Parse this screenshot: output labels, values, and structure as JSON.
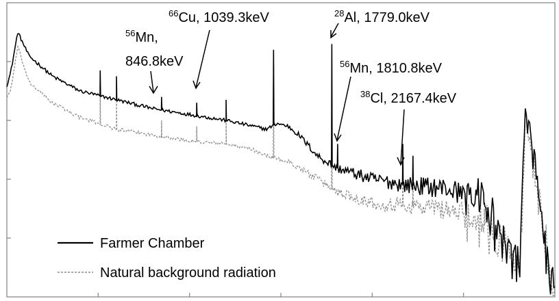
{
  "chart_data": {
    "type": "line",
    "title": "",
    "xlabel": "",
    "ylabel": "",
    "xlim": [
      0,
      3000
    ],
    "x_unit": "keV",
    "ylim": [
      0,
      1
    ],
    "grid": false,
    "legend_position": "bottom-left",
    "series": [
      {
        "name": "Farmer Chamber",
        "color": "#000000",
        "style": "solid",
        "continuum": [
          [
            0,
            0.72
          ],
          [
            20,
            0.76
          ],
          [
            60,
            0.9
          ],
          [
            120,
            0.82
          ],
          [
            250,
            0.75
          ],
          [
            400,
            0.7
          ],
          [
            600,
            0.67
          ],
          [
            800,
            0.64
          ],
          [
            1000,
            0.62
          ],
          [
            1200,
            0.6
          ],
          [
            1350,
            0.58
          ],
          [
            1420,
            0.57
          ],
          [
            1480,
            0.59
          ],
          [
            1540,
            0.58
          ],
          [
            1600,
            0.55
          ],
          [
            1700,
            0.48
          ],
          [
            1800,
            0.44
          ],
          [
            2000,
            0.4
          ],
          [
            2200,
            0.38
          ],
          [
            2400,
            0.37
          ],
          [
            2600,
            0.33
          ],
          [
            2700,
            0.2
          ],
          [
            2810,
            0.12
          ],
          [
            2840,
            0.65
          ],
          [
            2980,
            0.02
          ],
          [
            3000,
            0.02
          ]
        ],
        "peaks": [
          {
            "x": 511,
            "y": 0.77
          },
          {
            "x": 600,
            "y": 0.75
          },
          {
            "x": 846.8,
            "y": 0.68
          },
          {
            "x": 1039.3,
            "y": 0.66
          },
          {
            "x": 1200,
            "y": 0.67
          },
          {
            "x": 1460,
            "y": 0.84
          },
          {
            "x": 1779.0,
            "y": 0.86
          },
          {
            "x": 1810.8,
            "y": 0.52
          },
          {
            "x": 2167.4,
            "y": 0.52
          },
          {
            "x": 2223,
            "y": 0.48
          },
          {
            "x": 2614,
            "y": 0.32
          }
        ]
      },
      {
        "name": "Natural background radiation",
        "color": "#8c8c8c",
        "style": "dashed",
        "continuum": [
          [
            0,
            0.68
          ],
          [
            20,
            0.7
          ],
          [
            60,
            0.85
          ],
          [
            120,
            0.73
          ],
          [
            250,
            0.66
          ],
          [
            400,
            0.61
          ],
          [
            600,
            0.57
          ],
          [
            800,
            0.55
          ],
          [
            1000,
            0.53
          ],
          [
            1200,
            0.52
          ],
          [
            1350,
            0.5
          ],
          [
            1420,
            0.48
          ],
          [
            1480,
            0.47
          ],
          [
            1540,
            0.46
          ],
          [
            1600,
            0.44
          ],
          [
            1700,
            0.4
          ],
          [
            1800,
            0.36
          ],
          [
            2000,
            0.32
          ],
          [
            2200,
            0.31
          ],
          [
            2400,
            0.3
          ],
          [
            2600,
            0.26
          ],
          [
            2700,
            0.18
          ],
          [
            2810,
            0.1
          ],
          [
            2840,
            0.64
          ],
          [
            2980,
            0.05
          ],
          [
            3000,
            0.05
          ]
        ],
        "peaks": [
          {
            "x": 511,
            "y": 0.7
          },
          {
            "x": 600,
            "y": 0.67
          },
          {
            "x": 846.8,
            "y": 0.6
          },
          {
            "x": 1039.3,
            "y": 0.58
          },
          {
            "x": 1200,
            "y": 0.6
          },
          {
            "x": 1460,
            "y": 0.82
          },
          {
            "x": 1779.0,
            "y": 0.75
          },
          {
            "x": 2167.4,
            "y": 0.45
          },
          {
            "x": 2223,
            "y": 0.44
          },
          {
            "x": 2614,
            "y": 0.3
          }
        ]
      }
    ],
    "annotations": [
      {
        "sup": "56",
        "label": "Mn,",
        "label2": "846.8keV",
        "x": 846.8
      },
      {
        "sup": "66",
        "label": "Cu, 1039.3keV",
        "x": 1039.3
      },
      {
        "sup": "28",
        "label": "Al, 1779.0keV",
        "x": 1779.0
      },
      {
        "sup": "56",
        "label": "Mn, 1810.8keV",
        "x": 1810.8
      },
      {
        "sup": "38",
        "label": "Cl, 2167.4keV",
        "x": 2167.4
      }
    ],
    "legend": [
      "Farmer Chamber",
      "Natural background radiation"
    ]
  }
}
